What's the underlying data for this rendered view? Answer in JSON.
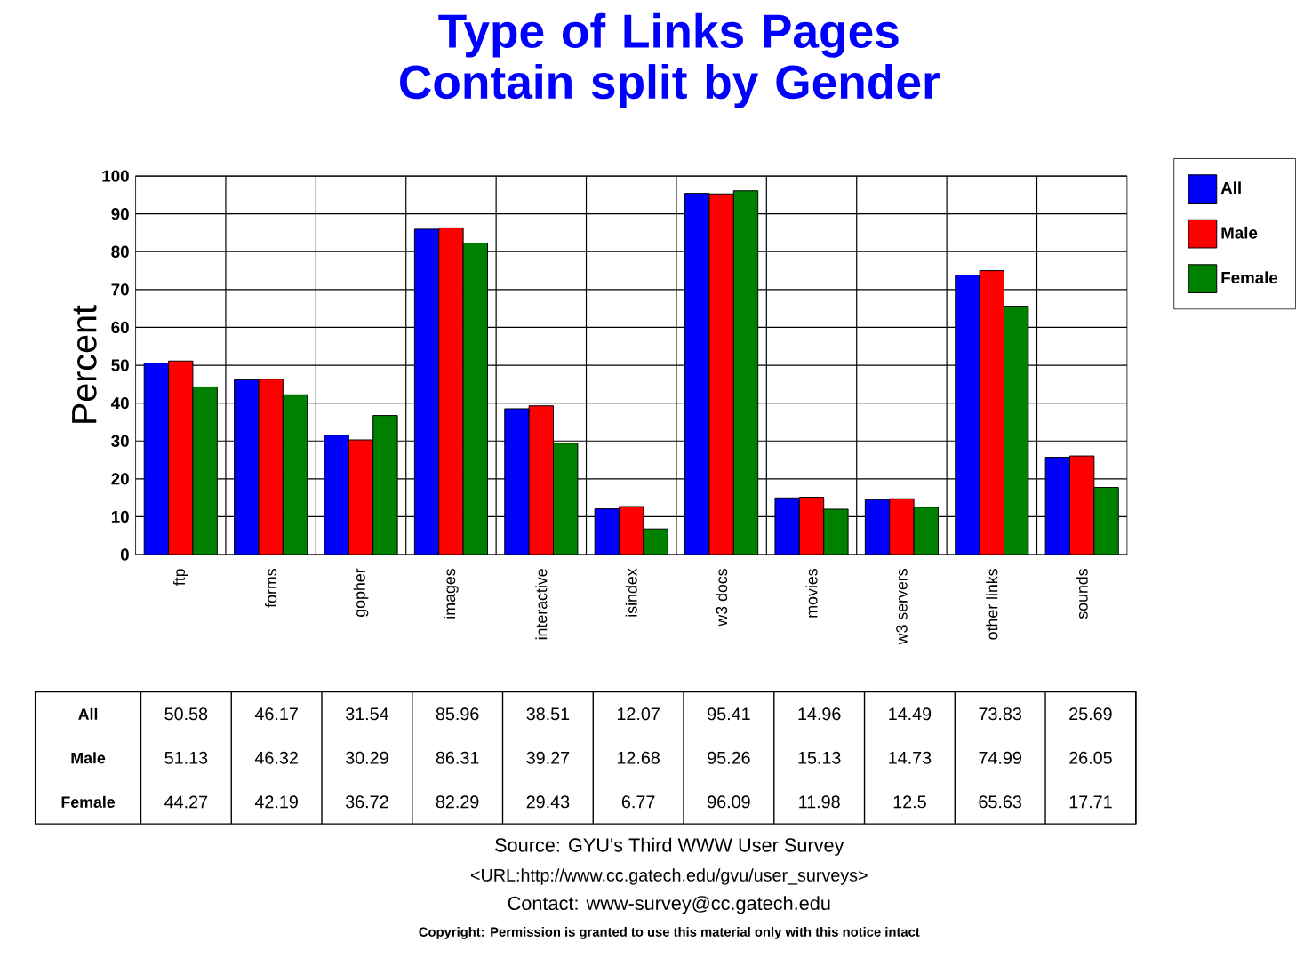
{
  "chart_data": {
    "type": "bar",
    "title": "Type of Links Pages Contain split by Gender",
    "ylabel": "Percent",
    "categories": [
      "ftp",
      "forms",
      "gopher",
      "images",
      "interactive",
      "isindex",
      "w3 docs",
      "movies",
      "w3 servers",
      "other links",
      "sounds"
    ],
    "series": [
      {
        "name": "All",
        "color": "#0000ff",
        "values": [
          50.58,
          46.17,
          31.54,
          85.96,
          38.51,
          12.07,
          95.41,
          14.96,
          14.49,
          73.83,
          25.69
        ]
      },
      {
        "name": "Male",
        "color": "#ff0000",
        "values": [
          51.13,
          46.32,
          30.29,
          86.31,
          39.27,
          12.68,
          95.26,
          15.13,
          14.73,
          74.99,
          26.05
        ]
      },
      {
        "name": "Female",
        "color": "#008000",
        "values": [
          44.27,
          42.19,
          36.72,
          82.29,
          29.43,
          6.77,
          96.09,
          11.98,
          12.5,
          65.63,
          17.71
        ]
      }
    ],
    "ylim": [
      0,
      100
    ],
    "yticks": [
      0,
      10,
      20,
      30,
      40,
      50,
      60,
      70,
      80,
      90,
      100
    ],
    "grid": true,
    "legend": "top right",
    "data_labels": true,
    "annotations": [
      "Source: GYU's Third WWW User Survey",
      "<URL:http://www.cc.gatech.edu/gvu/user_surveys>",
      "Contact: www-survey@cc.gatech.edu",
      "Copyright: Permission is granted to use this material only with this notice intact"
    ]
  }
}
